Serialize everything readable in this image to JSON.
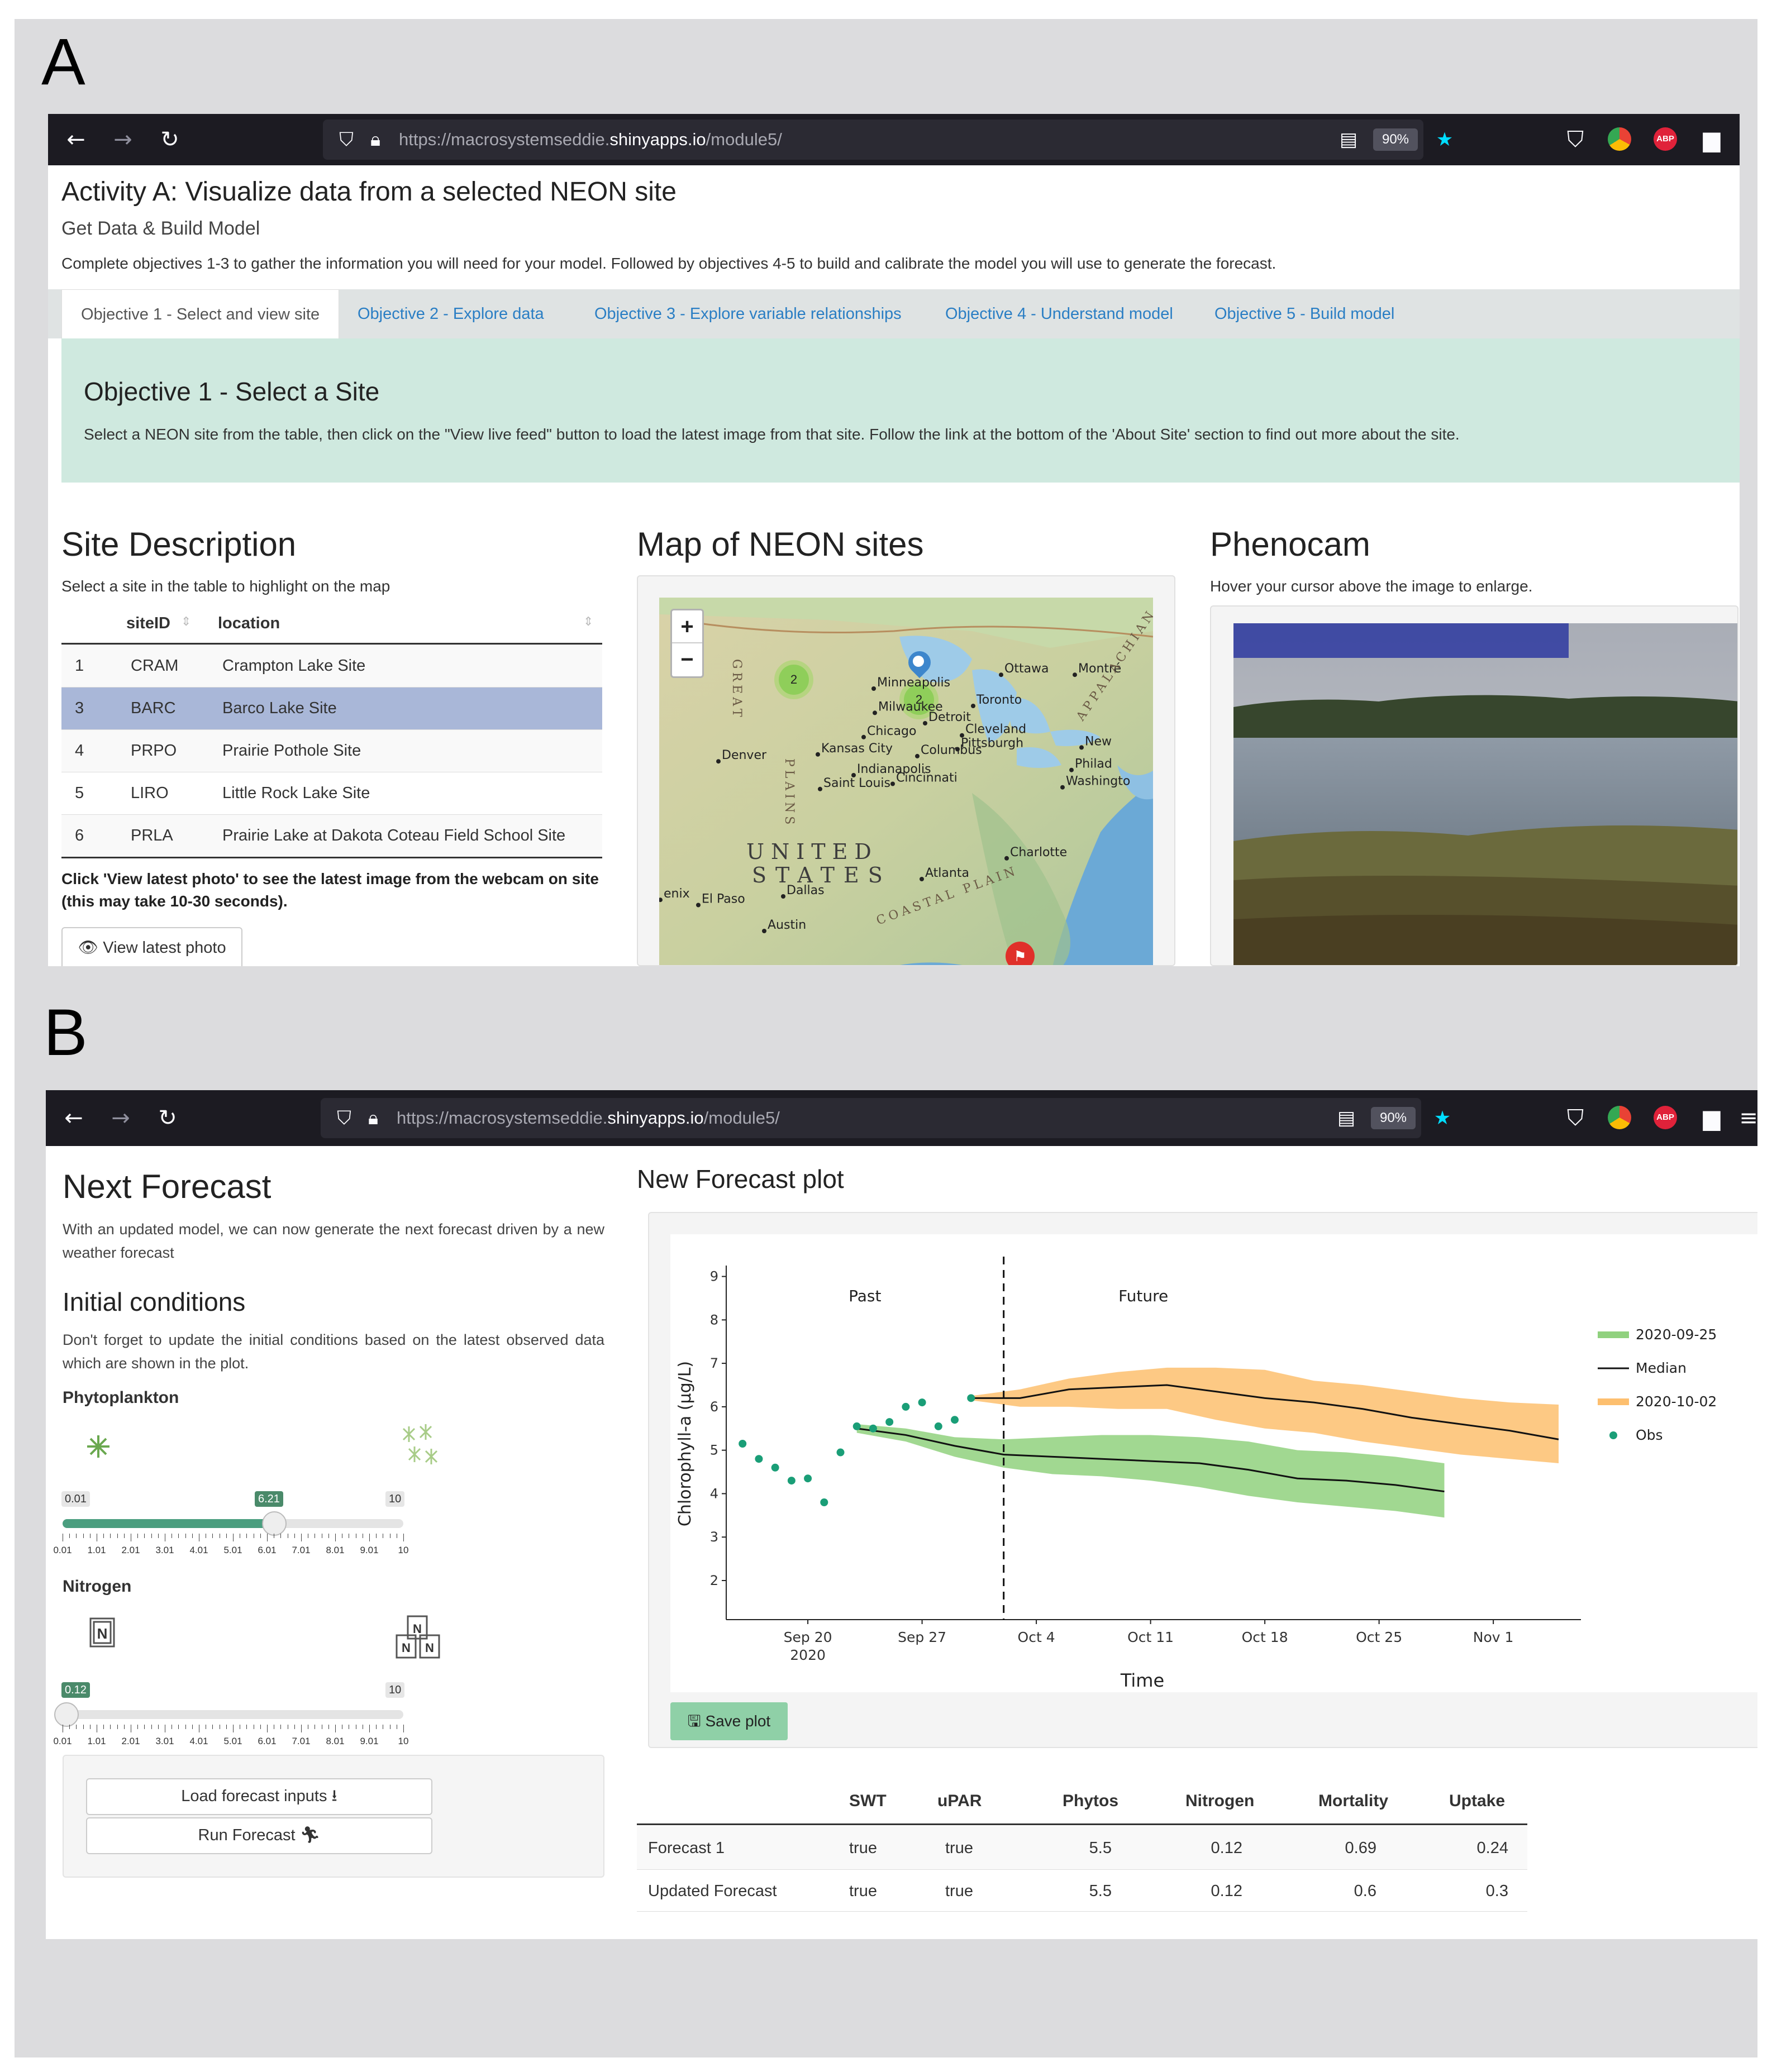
{
  "panels": {
    "a_letter": "A",
    "b_letter": "B"
  },
  "browser": {
    "url_prefix": "https://macrosystemseddie.",
    "url_host": "shinyapps.io",
    "url_path": "/module5/",
    "zoom": "90%"
  },
  "activity": {
    "title": "Activity A: Visualize data from a selected NEON site",
    "subtitle": "Get Data & Build Model",
    "description": "Complete objectives 1-3 to gather the information you will need for your model. Followed by objectives 4-5 to build and calibrate the model you will use to generate the forecast.",
    "tabs": [
      {
        "label": "Objective 1 - Select and view site"
      },
      {
        "label": "Objective 2 - Explore data"
      },
      {
        "label": "Objective 3 - Explore variable relationships"
      },
      {
        "label": "Objective 4 - Understand model"
      },
      {
        "label": "Objective 5 - Build model"
      }
    ],
    "objective_title": "Objective 1 - Select a Site",
    "objective_text": "Select a NEON site from the table, then click on the \"View live feed\" button to load the latest image from that site. Follow the link at the bottom of the 'About Site' section to find out more about the site."
  },
  "site_description": {
    "title": "Site Description",
    "hint": "Select a site in the table to highlight on the map",
    "columns": [
      "siteID",
      "location"
    ],
    "rows": [
      {
        "n": "1",
        "id": "CRAM",
        "location": "Crampton Lake Site"
      },
      {
        "n": "3",
        "id": "BARC",
        "location": "Barco Lake Site"
      },
      {
        "n": "4",
        "id": "PRPO",
        "location": "Prairie Pothole Site"
      },
      {
        "n": "5",
        "id": "LIRO",
        "location": "Little Rock Lake Site"
      },
      {
        "n": "6",
        "id": "PRLA",
        "location": "Prairie Lake at Dakota Coteau Field School Site"
      }
    ],
    "photo_note": "Click 'View latest photo' to see the latest image from the webcam on site (this may take 10-30 seconds).",
    "photo_button": "View latest photo"
  },
  "map": {
    "title": "Map of NEON sites",
    "zoom_in": "+",
    "zoom_out": "−",
    "cluster_1": "2",
    "cluster_2": "2",
    "cities": [
      "Ottawa",
      "Montré",
      "Minneapolis",
      "Toronto",
      "Milwaukee",
      "Detroit",
      "Chicago",
      "Cleveland",
      "Pittsburgh",
      "Denver",
      "Kansas City",
      "Columbus",
      "New",
      "Indianapolis",
      "Philad",
      "Saint Louis",
      "Cincinnati",
      "Washingto",
      "Charlotte",
      "Atlanta",
      "Dallas",
      "El Paso",
      "Austin",
      "enix"
    ],
    "region_1": "UNITED",
    "region_2": "STATES",
    "vertical_labels": [
      "GREAT",
      "PLAINS",
      "APPALACHIAN MOUNTAINS",
      "COASTAL PLAIN"
    ]
  },
  "phenocam": {
    "title": "Phenocam",
    "hint": "Hover your cursor above the image to enlarge."
  },
  "next_forecast": {
    "title": "Next Forecast",
    "text": "With an updated model, we can now generate the next forecast driven by a new weather forecast",
    "ic_title": "Initial conditions",
    "ic_text": "Don't forget to update the initial conditions based on the latest observed data which are shown in the plot.",
    "phyto_label": "Phytoplankton",
    "phyto_min": "0.01",
    "phyto_max": "10",
    "phyto_value": "6.21",
    "nitrogen_label": "Nitrogen",
    "nitrogen_min": "0.01",
    "nitrogen_max": "10",
    "nitrogen_value": "0.12",
    "slider_ticks": [
      "0.01",
      "1.01",
      "2.01",
      "3.01",
      "4.01",
      "5.01",
      "6.01",
      "7.01",
      "8.01",
      "9.01",
      "10"
    ],
    "load_button": "Load forecast inputs",
    "run_button": "Run Forecast"
  },
  "forecast_plot": {
    "title": "New Forecast plot",
    "save_button": "Save plot"
  },
  "chart_data": {
    "type": "line",
    "xlabel": "Time",
    "ylabel": "Chlorophyll-a (μg/L)",
    "ylim": [
      1.1,
      9.2
    ],
    "yticks": [
      2,
      3,
      4,
      5,
      6,
      7,
      8,
      9
    ],
    "xticks": [
      {
        "date": "2020-09-20",
        "label": "Sep 20",
        "sub": "2020"
      },
      {
        "date": "2020-09-27",
        "label": "Sep 27",
        "sub": ""
      },
      {
        "date": "2020-10-04",
        "label": "Oct 4",
        "sub": ""
      },
      {
        "date": "2020-10-11",
        "label": "Oct 11",
        "sub": ""
      },
      {
        "date": "2020-10-18",
        "label": "Oct 18",
        "sub": ""
      },
      {
        "date": "2020-10-25",
        "label": "Oct 25",
        "sub": ""
      },
      {
        "date": "2020-11-01",
        "label": "Nov 1",
        "sub": ""
      }
    ],
    "xlim": [
      "2020-09-15",
      "2020-11-05"
    ],
    "divider_date": "2020-10-02",
    "annotations": {
      "past": "Past",
      "future": "Future"
    },
    "legend": [
      "2020-09-25",
      "Median",
      "2020-10-02",
      "Obs"
    ],
    "obs": [
      {
        "x": "2020-09-16",
        "y": 5.15
      },
      {
        "x": "2020-09-17",
        "y": 4.8
      },
      {
        "x": "2020-09-18",
        "y": 4.6
      },
      {
        "x": "2020-09-19",
        "y": 4.3
      },
      {
        "x": "2020-09-20",
        "y": 4.35
      },
      {
        "x": "2020-09-21",
        "y": 3.8
      },
      {
        "x": "2020-09-22",
        "y": 4.95
      },
      {
        "x": "2020-09-23",
        "y": 5.55
      },
      {
        "x": "2020-09-24",
        "y": 5.5
      },
      {
        "x": "2020-09-25",
        "y": 5.65
      },
      {
        "x": "2020-09-26",
        "y": 6.0
      },
      {
        "x": "2020-09-27",
        "y": 6.1
      },
      {
        "x": "2020-09-28",
        "y": 5.55
      },
      {
        "x": "2020-09-29",
        "y": 5.7
      },
      {
        "x": "2020-09-30",
        "y": 6.2
      }
    ],
    "series": [
      {
        "name": "2020-09-25",
        "color": "#90d17e",
        "x": [
          "2020-09-23",
          "2020-09-26",
          "2020-09-29",
          "2020-10-02",
          "2020-10-05",
          "2020-10-08",
          "2020-10-11",
          "2020-10-14",
          "2020-10-17",
          "2020-10-20",
          "2020-10-23",
          "2020-10-26",
          "2020-10-29"
        ],
        "median": [
          5.5,
          5.35,
          5.1,
          4.9,
          4.85,
          4.8,
          4.75,
          4.7,
          4.55,
          4.35,
          4.3,
          4.2,
          4.05
        ],
        "upper": [
          5.6,
          5.5,
          5.3,
          5.25,
          5.3,
          5.35,
          5.35,
          5.3,
          5.2,
          5.0,
          4.95,
          4.85,
          4.7
        ],
        "lower": [
          5.4,
          5.2,
          4.85,
          4.6,
          4.45,
          4.4,
          4.3,
          4.15,
          3.95,
          3.8,
          3.7,
          3.6,
          3.45
        ]
      },
      {
        "name": "2020-10-02",
        "color": "#fdbf6f",
        "x": [
          "2020-09-30",
          "2020-10-03",
          "2020-10-06",
          "2020-10-09",
          "2020-10-12",
          "2020-10-15",
          "2020-10-18",
          "2020-10-21",
          "2020-10-24",
          "2020-10-27",
          "2020-10-30",
          "2020-11-02",
          "2020-11-05"
        ],
        "median": [
          6.2,
          6.2,
          6.4,
          6.45,
          6.5,
          6.35,
          6.2,
          6.1,
          5.95,
          5.75,
          5.6,
          5.45,
          5.25
        ],
        "upper": [
          6.25,
          6.4,
          6.65,
          6.8,
          6.9,
          6.9,
          6.85,
          6.6,
          6.5,
          6.35,
          6.2,
          6.1,
          6.05
        ],
        "lower": [
          6.15,
          6.0,
          6.0,
          5.95,
          5.95,
          5.7,
          5.5,
          5.4,
          5.2,
          5.05,
          4.9,
          4.8,
          4.7
        ]
      }
    ]
  },
  "results_table": {
    "columns": [
      "",
      "SWT",
      "uPAR",
      "Phytos",
      "Nitrogen",
      "Mortality",
      "Uptake"
    ],
    "rows": [
      [
        "Forecast 1",
        "true",
        "true",
        "5.5",
        "0.12",
        "0.69",
        "0.24"
      ],
      [
        "Updated Forecast",
        "true",
        "true",
        "5.5",
        "0.12",
        "0.6",
        "0.3"
      ]
    ]
  },
  "colors": {
    "accent_green": "#4a9e7f",
    "forecast_green": "#90d17e",
    "forecast_orange": "#fdbf6f",
    "link_blue": "#2a7ec4"
  }
}
